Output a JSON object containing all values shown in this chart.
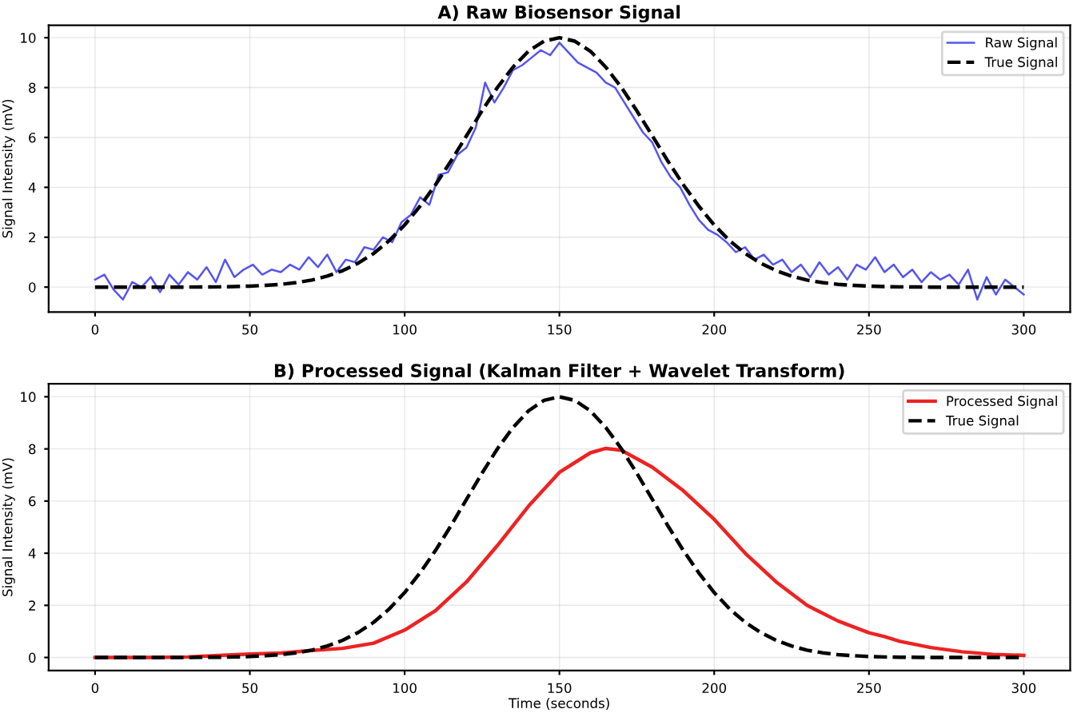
{
  "chart_data": [
    {
      "type": "line",
      "title": "A) Raw Biosensor Signal",
      "ylabel": "Signal Intensity (mV)",
      "xlim": [
        -15,
        315
      ],
      "ylim": [
        -1,
        10.5
      ],
      "xticks": [
        0,
        50,
        100,
        150,
        200,
        250,
        300
      ],
      "yticks": [
        0,
        2,
        4,
        6,
        8,
        10
      ],
      "grid": true,
      "legend": "top right",
      "series": [
        {
          "name": "Raw Signal",
          "color": "#5555ee",
          "line_style": "solid",
          "x": [
            0,
            3,
            6,
            9,
            12,
            15,
            18,
            21,
            24,
            27,
            30,
            33,
            36,
            39,
            42,
            45,
            48,
            51,
            54,
            57,
            60,
            63,
            66,
            69,
            72,
            75,
            78,
            81,
            84,
            87,
            90,
            93,
            96,
            99,
            102,
            105,
            108,
            111,
            114,
            117,
            120,
            123,
            126,
            129,
            132,
            135,
            138,
            141,
            144,
            147,
            150,
            153,
            156,
            159,
            162,
            165,
            168,
            171,
            174,
            177,
            180,
            183,
            186,
            189,
            192,
            195,
            198,
            201,
            204,
            207,
            210,
            213,
            216,
            219,
            222,
            225,
            228,
            231,
            234,
            237,
            240,
            243,
            246,
            249,
            252,
            255,
            258,
            261,
            264,
            267,
            270,
            273,
            276,
            279,
            282,
            285,
            288,
            291,
            294,
            297,
            300
          ],
          "values": [
            0.3,
            0.5,
            -0.1,
            -0.5,
            0.2,
            0.0,
            0.4,
            -0.2,
            0.5,
            0.1,
            0.6,
            0.3,
            0.8,
            0.2,
            1.1,
            0.4,
            0.7,
            0.9,
            0.5,
            0.7,
            0.6,
            0.9,
            0.7,
            1.2,
            0.8,
            1.3,
            0.6,
            1.1,
            1.0,
            1.6,
            1.5,
            2.0,
            1.8,
            2.6,
            2.9,
            3.6,
            3.3,
            4.5,
            4.6,
            5.3,
            5.6,
            6.4,
            8.2,
            7.4,
            8.0,
            8.7,
            8.9,
            9.2,
            9.5,
            9.3,
            9.8,
            9.4,
            9.0,
            8.8,
            8.6,
            8.2,
            8.0,
            7.4,
            6.8,
            6.2,
            5.8,
            5.0,
            4.4,
            4.0,
            3.3,
            2.7,
            2.3,
            2.1,
            1.8,
            1.4,
            1.6,
            1.1,
            1.3,
            0.9,
            1.1,
            0.6,
            0.9,
            0.4,
            1.0,
            0.5,
            0.8,
            0.3,
            0.9,
            0.7,
            1.2,
            0.6,
            0.9,
            0.4,
            0.7,
            0.2,
            0.6,
            0.3,
            0.5,
            0.1,
            0.7,
            -0.5,
            0.4,
            -0.3,
            0.3,
            0.0,
            -0.3
          ]
        },
        {
          "name": "True Signal",
          "color": "#000000",
          "line_style": "dashed",
          "x": [
            0,
            10,
            20,
            30,
            40,
            45,
            50,
            55,
            60,
            65,
            70,
            75,
            80,
            85,
            90,
            95,
            100,
            105,
            110,
            115,
            120,
            125,
            130,
            135,
            140,
            145,
            150,
            155,
            160,
            165,
            170,
            175,
            180,
            185,
            190,
            195,
            200,
            205,
            210,
            215,
            220,
            225,
            230,
            235,
            240,
            245,
            250,
            255,
            260,
            270,
            280,
            290,
            300
          ],
          "values": [
            0,
            0,
            0,
            0,
            0.01,
            0.02,
            0.04,
            0.07,
            0.11,
            0.18,
            0.28,
            0.44,
            0.66,
            0.96,
            1.35,
            1.86,
            2.49,
            3.25,
            4.11,
            5.06,
            6.07,
            7.07,
            8.01,
            8.82,
            9.46,
            9.86,
            10,
            9.86,
            9.46,
            8.82,
            8.01,
            7.07,
            6.07,
            5.06,
            4.11,
            3.25,
            2.49,
            1.86,
            1.35,
            0.96,
            0.66,
            0.44,
            0.28,
            0.18,
            0.11,
            0.07,
            0.04,
            0.02,
            0.01,
            0,
            0,
            0,
            0
          ]
        }
      ]
    },
    {
      "type": "line",
      "title": "B) Processed Signal (Kalman Filter + Wavelet Transform)",
      "xlabel": "Time (seconds)",
      "ylabel": "Signal Intensity (mV)",
      "xlim": [
        -15,
        315
      ],
      "ylim": [
        -0.5,
        10.5
      ],
      "xticks": [
        0,
        50,
        100,
        150,
        200,
        250,
        300
      ],
      "yticks": [
        0,
        2,
        4,
        6,
        8,
        10
      ],
      "grid": true,
      "legend": "top right",
      "series": [
        {
          "name": "Processed Signal",
          "color": "#ee2222",
          "line_style": "solid",
          "x": [
            0,
            10,
            20,
            30,
            40,
            50,
            60,
            70,
            80,
            90,
            100,
            110,
            120,
            130,
            140,
            150,
            160,
            165,
            170,
            180,
            190,
            200,
            210,
            220,
            230,
            240,
            250,
            255,
            260,
            270,
            280,
            290,
            300
          ],
          "values": [
            0,
            0,
            0,
            0.02,
            0.08,
            0.13,
            0.17,
            0.27,
            0.35,
            0.55,
            1.05,
            1.8,
            2.9,
            4.3,
            5.8,
            7.1,
            7.85,
            8.02,
            7.95,
            7.3,
            6.4,
            5.3,
            4.0,
            2.9,
            2.0,
            1.4,
            0.95,
            0.8,
            0.62,
            0.38,
            0.22,
            0.12,
            0.08
          ]
        },
        {
          "name": "True Signal",
          "color": "#000000",
          "line_style": "dashed",
          "x": [
            0,
            10,
            20,
            30,
            40,
            45,
            50,
            55,
            60,
            65,
            70,
            75,
            80,
            85,
            90,
            95,
            100,
            105,
            110,
            115,
            120,
            125,
            130,
            135,
            140,
            145,
            150,
            155,
            160,
            165,
            170,
            175,
            180,
            185,
            190,
            195,
            200,
            205,
            210,
            215,
            220,
            225,
            230,
            235,
            240,
            245,
            250,
            255,
            260,
            270,
            280,
            290,
            300
          ],
          "values": [
            0,
            0,
            0,
            0,
            0.01,
            0.02,
            0.04,
            0.07,
            0.11,
            0.18,
            0.28,
            0.44,
            0.66,
            0.96,
            1.35,
            1.86,
            2.49,
            3.25,
            4.11,
            5.06,
            6.07,
            7.07,
            8.01,
            8.82,
            9.46,
            9.86,
            10,
            9.86,
            9.46,
            8.82,
            8.01,
            7.07,
            6.07,
            5.06,
            4.11,
            3.25,
            2.49,
            1.86,
            1.35,
            0.96,
            0.66,
            0.44,
            0.28,
            0.18,
            0.11,
            0.07,
            0.04,
            0.02,
            0.01,
            0,
            0,
            0,
            0
          ]
        }
      ]
    }
  ]
}
